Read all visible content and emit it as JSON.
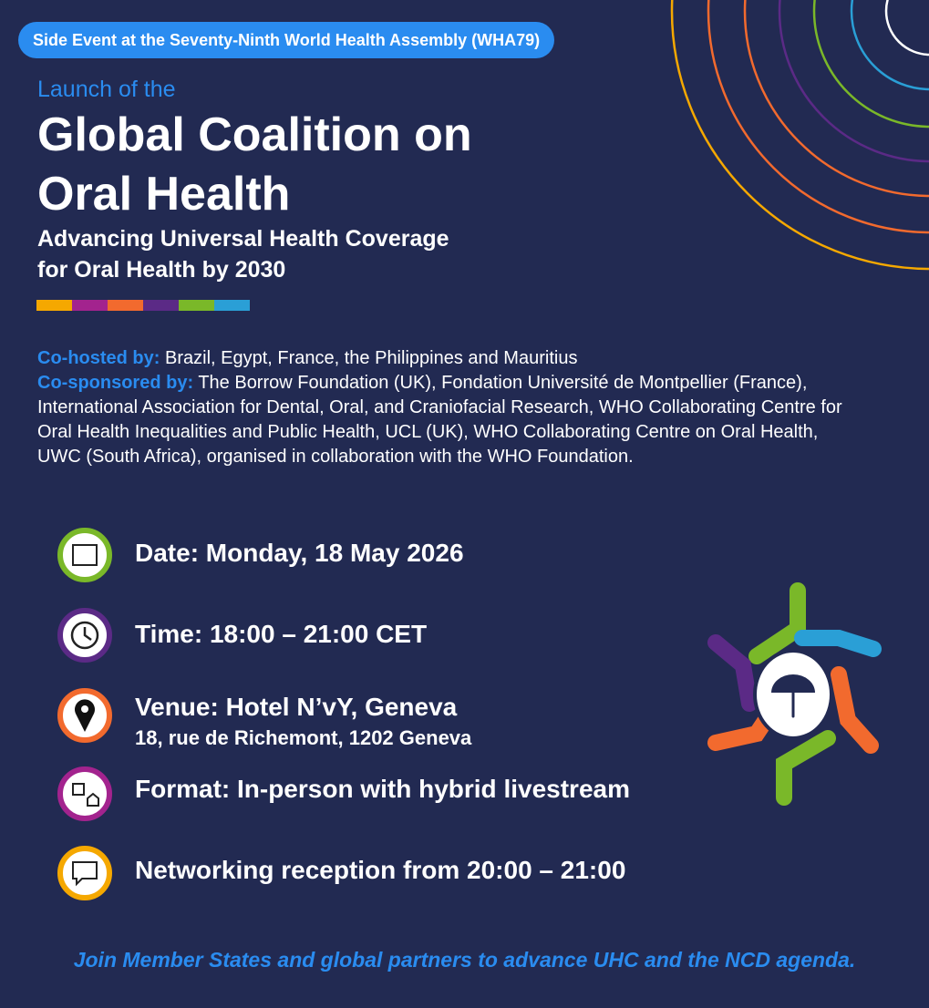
{
  "badge": "Side Event at the Seventy-Ninth World Health Assembly (WHA79)",
  "header": {
    "kicker": "Launch of the",
    "title_lines": [
      "Global Coalition on",
      "Oral Health"
    ],
    "subtitle_lines": [
      "Advancing Universal Health Coverage",
      "for Oral Health by 2030"
    ]
  },
  "hosts": {
    "label": "Co-hosted by:",
    "text": "Brazil, Egypt, France, the Philippines and Mauritius"
  },
  "sponsors": {
    "label": "Co-sponsored by:",
    "text": "The Borrow Foundation (UK), Fondation Université de Montpellier (France), International Association for Dental, Oral, and Craniofacial Research,  WHO Collaborating Centre for Oral Health Inequalities and Public Health, UCL (UK), WHO Collaborating Centre on Oral Health, UWC (South Africa), organised in collaboration with the WHO Foundation."
  },
  "details": [
    {
      "text": "Date: Monday, 18 May 2026"
    },
    {
      "text": "Time: 18:00 – 21:00 CET"
    },
    {
      "text": "Venue: Hotel N’vY, Geneva",
      "sub": "18, rue de Richemont, 1202 Geneva"
    },
    {
      "text": "Format: In-person with hybrid livestream"
    },
    {
      "text": "Networking reception from 20:00 – 21:00"
    }
  ],
  "footer": "Join Member States and global partners to advance UHC and the NCD agenda."
}
